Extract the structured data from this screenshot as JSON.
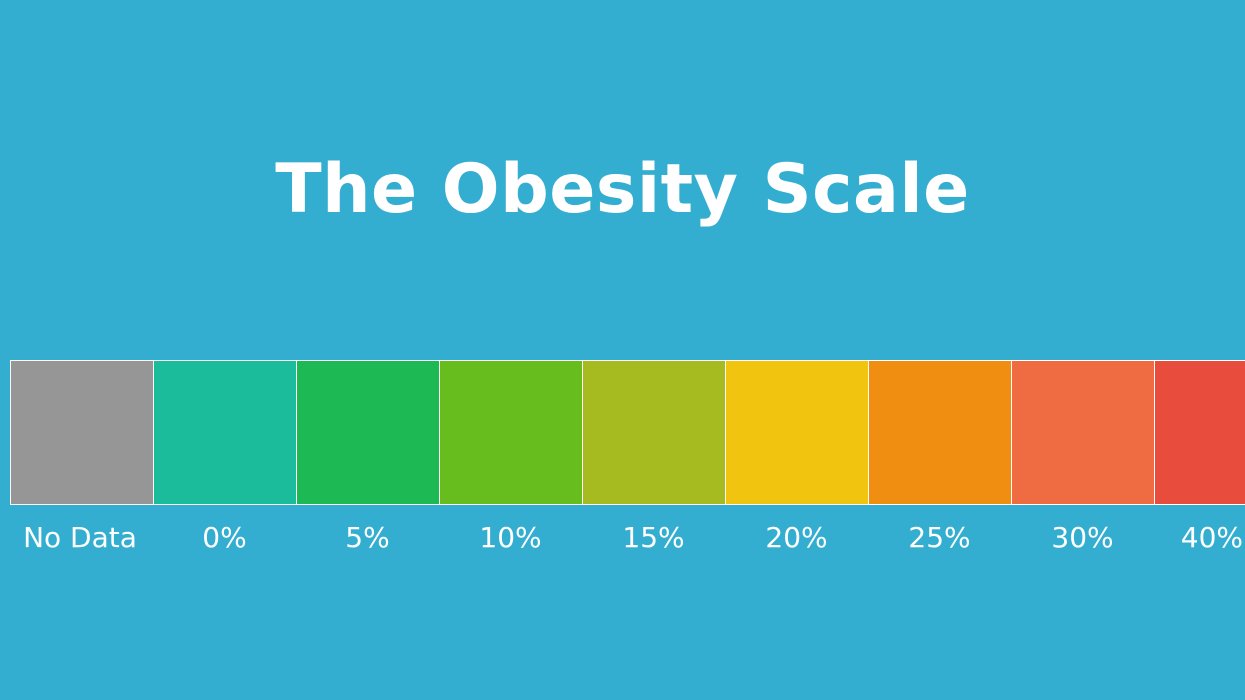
{
  "title": "The Obesity Scale",
  "chart_data": {
    "type": "table",
    "title": "The Obesity Scale",
    "categories": [
      "No Data",
      "0%",
      "5%",
      "10%",
      "15%",
      "20%",
      "25%",
      "30%",
      "40%"
    ],
    "colors": [
      "#969696",
      "#1ABC9C",
      "#1DB954",
      "#67BC1E",
      "#A5BB1F",
      "#F1C40F",
      "#F08E12",
      "#EF6C42",
      "#E74C3C"
    ],
    "legend_border_color": "#ffffff"
  },
  "background_color": "#33AED1"
}
